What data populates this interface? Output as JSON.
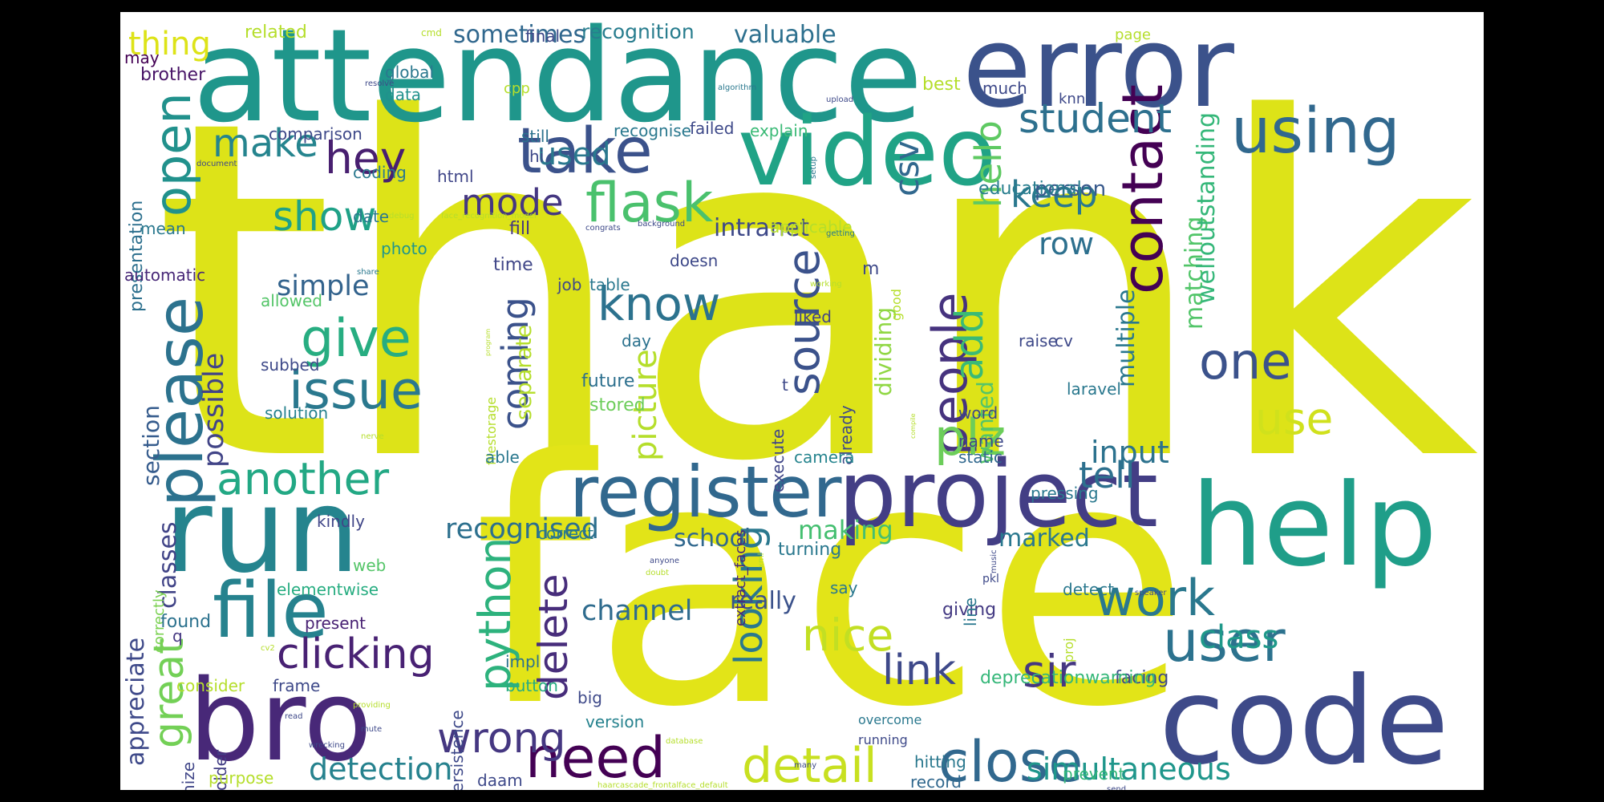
{
  "cloud": {
    "background": "#ffffff",
    "frame_color": "#000000",
    "words": [
      {
        "text": "thank",
        "color": "#dde318"
      },
      {
        "text": "face",
        "color": "#e2e418"
      },
      {
        "text": "attendance",
        "color": "#1f968b"
      },
      {
        "text": "error",
        "color": "#3b528b"
      },
      {
        "text": "video",
        "color": "#20a386"
      },
      {
        "text": "run",
        "color": "#25848e"
      },
      {
        "text": "bro",
        "color": "#482878"
      },
      {
        "text": "code",
        "color": "#3e4a89"
      },
      {
        "text": "help",
        "color": "#1f9e89"
      },
      {
        "text": "project",
        "color": "#433e85"
      },
      {
        "text": "register",
        "color": "#31688e"
      },
      {
        "text": "take",
        "color": "#3b528b"
      },
      {
        "text": "flask",
        "color": "#4ac16d"
      },
      {
        "text": "contact",
        "color": "#440154"
      },
      {
        "text": "using",
        "color": "#31688e"
      },
      {
        "text": "student",
        "color": "#2d708e"
      },
      {
        "text": "please",
        "color": "#2c728e"
      },
      {
        "text": "open",
        "color": "#21918c"
      },
      {
        "text": "give",
        "color": "#27ad81"
      },
      {
        "text": "issue",
        "color": "#2a788e"
      },
      {
        "text": "file",
        "color": "#26828e"
      },
      {
        "text": "clicking",
        "color": "#482173"
      },
      {
        "text": "work",
        "color": "#2a788e"
      },
      {
        "text": "user",
        "color": "#2c728e"
      },
      {
        "text": "need",
        "color": "#440154"
      },
      {
        "text": "close",
        "color": "#31688e"
      },
      {
        "text": "detail",
        "color": "#c8e020"
      },
      {
        "text": "nice",
        "color": "#c2df23"
      },
      {
        "text": "link",
        "color": "#3e4989"
      },
      {
        "text": "sir",
        "color": "#453781"
      },
      {
        "text": "one",
        "color": "#3b528b"
      },
      {
        "text": "use",
        "color": "#d0e11c"
      },
      {
        "text": "another",
        "color": "#22a884"
      },
      {
        "text": "people",
        "color": "#46337e"
      },
      {
        "text": "plz",
        "color": "#6ccd5a"
      },
      {
        "text": "add",
        "color": "#3aba76"
      },
      {
        "text": "source",
        "color": "#3b528b"
      },
      {
        "text": "know",
        "color": "#2c728e"
      },
      {
        "text": "python",
        "color": "#2db27d"
      },
      {
        "text": "delete",
        "color": "#472d7b"
      },
      {
        "text": "looking",
        "color": "#2a788e"
      },
      {
        "text": "wrong",
        "color": "#453781"
      },
      {
        "text": "great",
        "color": "#73d056"
      },
      {
        "text": "make",
        "color": "#25848e"
      },
      {
        "text": "hey",
        "color": "#481f70"
      },
      {
        "text": "show",
        "color": "#1fa187"
      },
      {
        "text": "mode",
        "color": "#453781"
      },
      {
        "text": "keep",
        "color": "#2a788e"
      },
      {
        "text": "csv",
        "color": "#31688e"
      },
      {
        "text": "hello",
        "color": "#5ec962"
      },
      {
        "text": "coming",
        "color": "#3b528b"
      },
      {
        "text": "picture",
        "color": "#b5de2b"
      },
      {
        "text": "tell",
        "color": "#2d708e"
      },
      {
        "text": "input",
        "color": "#2c728e"
      },
      {
        "text": "channel",
        "color": "#2f6c8e"
      },
      {
        "text": "recognised",
        "color": "#2d708e"
      },
      {
        "text": "simultaneous",
        "color": "#1f968b"
      },
      {
        "text": "detection",
        "color": "#26828e"
      },
      {
        "text": "class",
        "color": "#1f998a"
      },
      {
        "text": "simple",
        "color": "#33638d"
      },
      {
        "text": "possible",
        "color": "#414487"
      },
      {
        "text": "used",
        "color": "#2a788e"
      },
      {
        "text": "row",
        "color": "#2d708e"
      },
      {
        "text": "intranet",
        "color": "#3e4989"
      },
      {
        "text": "school",
        "color": "#31688e"
      },
      {
        "text": "marked",
        "color": "#2a788e"
      },
      {
        "text": "making",
        "color": "#44bf70"
      },
      {
        "text": "really",
        "color": "#3b528b"
      },
      {
        "text": "valuable",
        "color": "#2d708e"
      },
      {
        "text": "sometimes",
        "color": "#31688e"
      },
      {
        "text": "recognition",
        "color": "#287d8e"
      },
      {
        "text": "thing",
        "color": "#dde318"
      },
      {
        "text": "appreciate",
        "color": "#3e4989"
      },
      {
        "text": "classes",
        "color": "#414487"
      },
      {
        "text": "section",
        "color": "#365c8d"
      },
      {
        "text": "separate",
        "color": "#b5de2b"
      },
      {
        "text": "dividing",
        "color": "#90d743"
      },
      {
        "text": "wanted",
        "color": "#54c568"
      },
      {
        "text": "multiple",
        "color": "#2a788e"
      },
      {
        "text": "matching",
        "color": "#52c569"
      },
      {
        "text": "welloutstanding",
        "color": "#35b779"
      },
      {
        "text": "person",
        "color": "#38598c"
      },
      {
        "text": "educational",
        "color": "#287d8e"
      },
      {
        "text": "brother",
        "color": "#481467"
      },
      {
        "text": "presentation",
        "color": "#2d708e"
      },
      {
        "text": "comparison",
        "color": "#3e4989"
      },
      {
        "text": "global",
        "color": "#2a788e"
      },
      {
        "text": "data",
        "color": "#21918c"
      },
      {
        "text": "coding",
        "color": "#2a788e"
      },
      {
        "text": "date",
        "color": "#2a788e"
      },
      {
        "text": "html",
        "color": "#404688"
      },
      {
        "text": "still",
        "color": "#2c728e"
      },
      {
        "text": "hi",
        "color": "#3e4989"
      },
      {
        "text": "recognise",
        "color": "#2a788e"
      },
      {
        "text": "failed",
        "color": "#3e4989"
      },
      {
        "text": "explain",
        "color": "#3aba76"
      },
      {
        "text": "applicable",
        "color": "#b5de2b"
      },
      {
        "text": "photo",
        "color": "#1f968b"
      },
      {
        "text": "automatic",
        "color": "#482878"
      },
      {
        "text": "mean",
        "color": "#2a788e"
      },
      {
        "text": "allowed",
        "color": "#54c568"
      },
      {
        "text": "subbed",
        "color": "#3e4989"
      },
      {
        "text": "solution",
        "color": "#26828e"
      },
      {
        "text": "fill",
        "color": "#453781"
      },
      {
        "text": "time",
        "color": "#404688"
      },
      {
        "text": "job",
        "color": "#3e4989"
      },
      {
        "text": "table",
        "color": "#2a788e"
      },
      {
        "text": "day",
        "color": "#2c728e"
      },
      {
        "text": "future",
        "color": "#2d708e"
      },
      {
        "text": "stored",
        "color": "#6ccd5a"
      },
      {
        "text": "doesn",
        "color": "#3e4989"
      },
      {
        "text": "liked",
        "color": "#414487"
      },
      {
        "text": "execute",
        "color": "#404688"
      },
      {
        "text": "already",
        "color": "#3e4989"
      },
      {
        "text": "camera",
        "color": "#25848e"
      },
      {
        "text": "extract_faces",
        "color": "#482878"
      },
      {
        "text": "kindly",
        "color": "#404688"
      },
      {
        "text": "correctly",
        "color": "#7ad151"
      },
      {
        "text": "q",
        "color": "#453781"
      },
      {
        "text": "found",
        "color": "#2c728e"
      },
      {
        "text": "present",
        "color": "#482173"
      },
      {
        "text": "elementwise",
        "color": "#27ad81"
      },
      {
        "text": "web",
        "color": "#54c568"
      },
      {
        "text": "correct",
        "color": "#287d8e"
      },
      {
        "text": "turning",
        "color": "#2a788e"
      },
      {
        "text": "say",
        "color": "#2a788e"
      },
      {
        "text": "giving",
        "color": "#443a83"
      },
      {
        "text": "line",
        "color": "#2a788e"
      },
      {
        "text": "detect",
        "color": "#2a788e"
      },
      {
        "text": "facing",
        "color": "#3e4989"
      },
      {
        "text": "deprecationwarning",
        "color": "#35b779"
      },
      {
        "text": "impl",
        "color": "#2c728e"
      },
      {
        "text": "button",
        "color": "#27ad81"
      },
      {
        "text": "big",
        "color": "#3e4989"
      },
      {
        "text": "version",
        "color": "#26828e"
      },
      {
        "text": "persistence",
        "color": "#3e4989"
      },
      {
        "text": "consider",
        "color": "#b5de2b"
      },
      {
        "text": "frame",
        "color": "#3e4989"
      },
      {
        "text": "recognize",
        "color": "#404688"
      },
      {
        "text": "folder",
        "color": "#433e85"
      },
      {
        "text": "purpose",
        "color": "#b5de2b"
      },
      {
        "text": "daam",
        "color": "#3e4989"
      },
      {
        "text": "record",
        "color": "#31688e"
      },
      {
        "text": "hitting",
        "color": "#2a788e"
      },
      {
        "text": "prevent",
        "color": "#35b779"
      },
      {
        "text": "running",
        "color": "#3e4989"
      },
      {
        "text": "overcome",
        "color": "#2a788e"
      },
      {
        "text": "pressing",
        "color": "#2a788e"
      },
      {
        "text": "word",
        "color": "#3e4989"
      },
      {
        "text": "name",
        "color": "#3e4989"
      },
      {
        "text": "static",
        "color": "#31688e"
      },
      {
        "text": "raise",
        "color": "#3e4989"
      },
      {
        "text": "laravel",
        "color": "#2a788e"
      },
      {
        "text": "cv",
        "color": "#3e4989"
      },
      {
        "text": "good",
        "color": "#b5de2b"
      },
      {
        "text": "t",
        "color": "#3e4989"
      },
      {
        "text": "m",
        "color": "#3e4989"
      },
      {
        "text": "related",
        "color": "#b5de2b"
      },
      {
        "text": "final",
        "color": "#3e4989"
      },
      {
        "text": "best",
        "color": "#b5de2b"
      },
      {
        "text": "much",
        "color": "#3e4989"
      },
      {
        "text": "knn",
        "color": "#3e4989"
      },
      {
        "text": "page",
        "color": "#b5de2b"
      },
      {
        "text": "may",
        "color": "#440154"
      },
      {
        "text": "cpp",
        "color": "#b5de2b"
      },
      {
        "text": "filestorage",
        "color": "#b5de2b"
      },
      {
        "text": "able",
        "color": "#2a788e"
      },
      {
        "text": "proj",
        "color": "#b5de2b"
      },
      {
        "text": "pkl",
        "color": "#3e4989"
      },
      {
        "text": "cmd",
        "color": "#b5de2b"
      },
      {
        "text": "resolve",
        "color": "#3e4989"
      },
      {
        "text": "algorithm",
        "color": "#2a788e"
      },
      {
        "text": "upload",
        "color": "#3e4989"
      },
      {
        "text": "document",
        "color": "#3e4989"
      },
      {
        "text": "setup",
        "color": "#2a788e"
      },
      {
        "text": "debug",
        "color": "#b5de2b"
      },
      {
        "text": "face_recognition_model",
        "color": "#b5de2b"
      },
      {
        "text": "congrats",
        "color": "#3e4989"
      },
      {
        "text": "background",
        "color": "#3e4989"
      },
      {
        "text": "getting",
        "color": "#2a788e"
      },
      {
        "text": "share",
        "color": "#2a788e"
      },
      {
        "text": "working",
        "color": "#b5de2b"
      },
      {
        "text": "program",
        "color": "#b5de2b"
      },
      {
        "text": "compile",
        "color": "#b5de2b"
      },
      {
        "text": "nerve",
        "color": "#b5de2b"
      },
      {
        "text": "xml",
        "color": "#b5de2b"
      },
      {
        "text": "anyone",
        "color": "#3e4989"
      },
      {
        "text": "doubt",
        "color": "#b5de2b"
      },
      {
        "text": "music",
        "color": "#3e4989"
      },
      {
        "text": "speaker",
        "color": "#3e4989"
      },
      {
        "text": "cv2",
        "color": "#b5de2b"
      },
      {
        "text": "providing",
        "color": "#b5de2b"
      },
      {
        "text": "read",
        "color": "#3e4989"
      },
      {
        "text": "mute",
        "color": "#3e4989"
      },
      {
        "text": "wrecking",
        "color": "#3e4989"
      },
      {
        "text": "database",
        "color": "#b5de2b"
      },
      {
        "text": "many",
        "color": "#3e4989"
      },
      {
        "text": "haarcascade_frontalface_default",
        "color": "#b5de2b"
      },
      {
        "text": "send",
        "color": "#3e4989"
      }
    ]
  }
}
